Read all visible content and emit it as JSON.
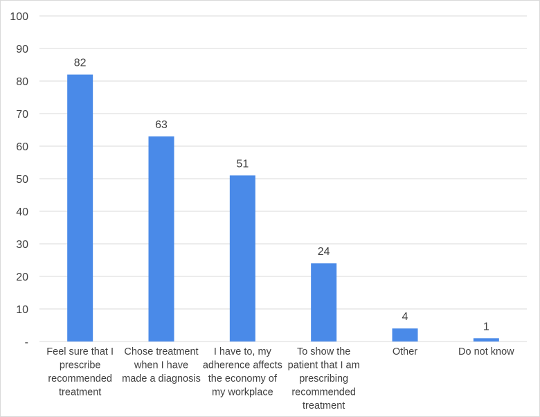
{
  "chart_data": {
    "type": "bar",
    "title": "",
    "xlabel": "",
    "ylabel": "",
    "categories": [
      "Feel sure that I prescribe recommended treatment",
      "Chose treatment when I have made a diagnosis",
      "I have to, my adherence affects the economy of my workplace",
      "To show the patient that I am prescribing recommended treatment",
      "Other",
      "Do not know"
    ],
    "category_lines": [
      [
        "Feel sure that I",
        "prescribe",
        "recommended",
        "treatment"
      ],
      [
        "Chose treatment",
        "when I have",
        "made a diagnosis"
      ],
      [
        "I have to, my",
        "adherence affects",
        "the economy of",
        "my workplace"
      ],
      [
        "To show the",
        "patient that I am",
        "prescribing",
        "recommended",
        "treatment"
      ],
      [
        "Other"
      ],
      [
        "Do not know"
      ]
    ],
    "values": [
      82,
      63,
      51,
      24,
      4,
      1
    ],
    "data_labels": [
      "82",
      "63",
      "51",
      "24",
      "4",
      "1"
    ],
    "ylim": [
      0,
      100
    ],
    "yticks": [
      0,
      10,
      20,
      30,
      40,
      50,
      60,
      70,
      80,
      90,
      100
    ],
    "ytick_labels": [
      "-",
      "10",
      "20",
      "30",
      "40",
      "50",
      "60",
      "70",
      "80",
      "90",
      "100"
    ],
    "grid": true,
    "legend": "none",
    "colors": {
      "bar": "#4a8ae8",
      "grid": "#d9d9d9",
      "text": "#404040",
      "axis": "#d9d9d9"
    }
  }
}
